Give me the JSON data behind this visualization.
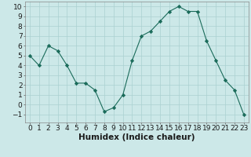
{
  "x": [
    0,
    1,
    2,
    3,
    4,
    5,
    6,
    7,
    8,
    9,
    10,
    11,
    12,
    13,
    14,
    15,
    16,
    17,
    18,
    19,
    20,
    21,
    22,
    23
  ],
  "y": [
    5,
    4,
    6,
    5.5,
    4,
    2.2,
    2.2,
    1.5,
    -0.7,
    -0.3,
    1,
    4.5,
    7,
    7.5,
    8.5,
    9.5,
    10,
    9.5,
    9.5,
    6.5,
    4.5,
    2.5,
    1.5,
    -1
  ],
  "line_color": "#1a6b5a",
  "marker": "D",
  "marker_size": 2.2,
  "bg_color": "#cce8e8",
  "grid_color": "#aad0d0",
  "xlabel": "Humidex (Indice chaleur)",
  "xlabel_fontsize": 7.5,
  "tick_fontsize": 6.5,
  "ylim": [
    -1.8,
    10.5
  ],
  "xlim": [
    -0.5,
    23.5
  ],
  "yticks": [
    -1,
    0,
    1,
    2,
    3,
    4,
    5,
    6,
    7,
    8,
    9,
    10
  ],
  "xticks": [
    0,
    1,
    2,
    3,
    4,
    5,
    6,
    7,
    8,
    9,
    10,
    11,
    12,
    13,
    14,
    15,
    16,
    17,
    18,
    19,
    20,
    21,
    22,
    23
  ]
}
